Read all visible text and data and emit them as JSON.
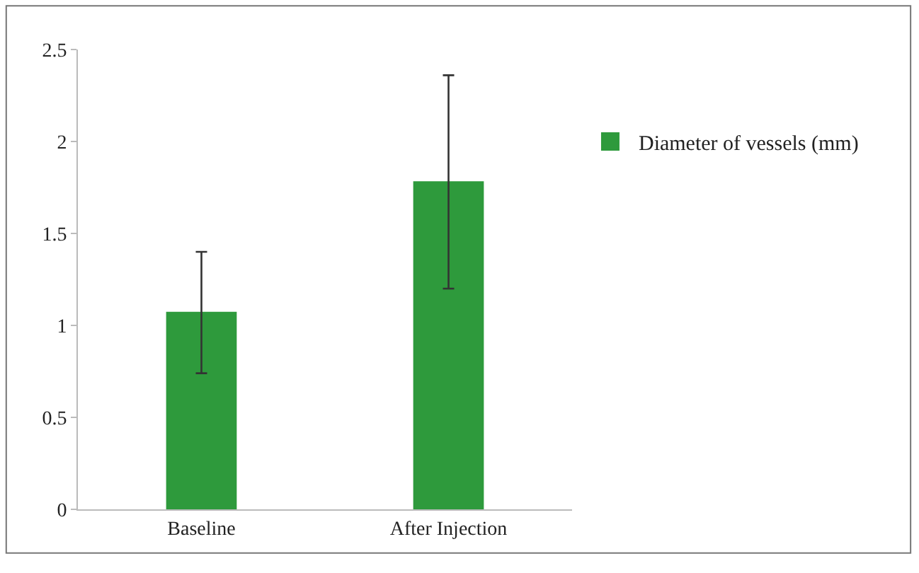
{
  "chart_data": {
    "type": "bar",
    "categories": [
      "Baseline",
      "After Injection"
    ],
    "series": [
      {
        "name": "Diameter of vessels (mm)",
        "color": "#2e9a3c",
        "values": [
          1.07,
          1.78
        ],
        "errors": [
          [
            0.74,
            1.4
          ],
          [
            1.2,
            2.36
          ]
        ]
      }
    ],
    "ylim": [
      0,
      2.5
    ],
    "yticks": [
      0,
      0.5,
      1,
      1.5,
      2,
      2.5
    ],
    "grid": false,
    "legend": "right"
  }
}
